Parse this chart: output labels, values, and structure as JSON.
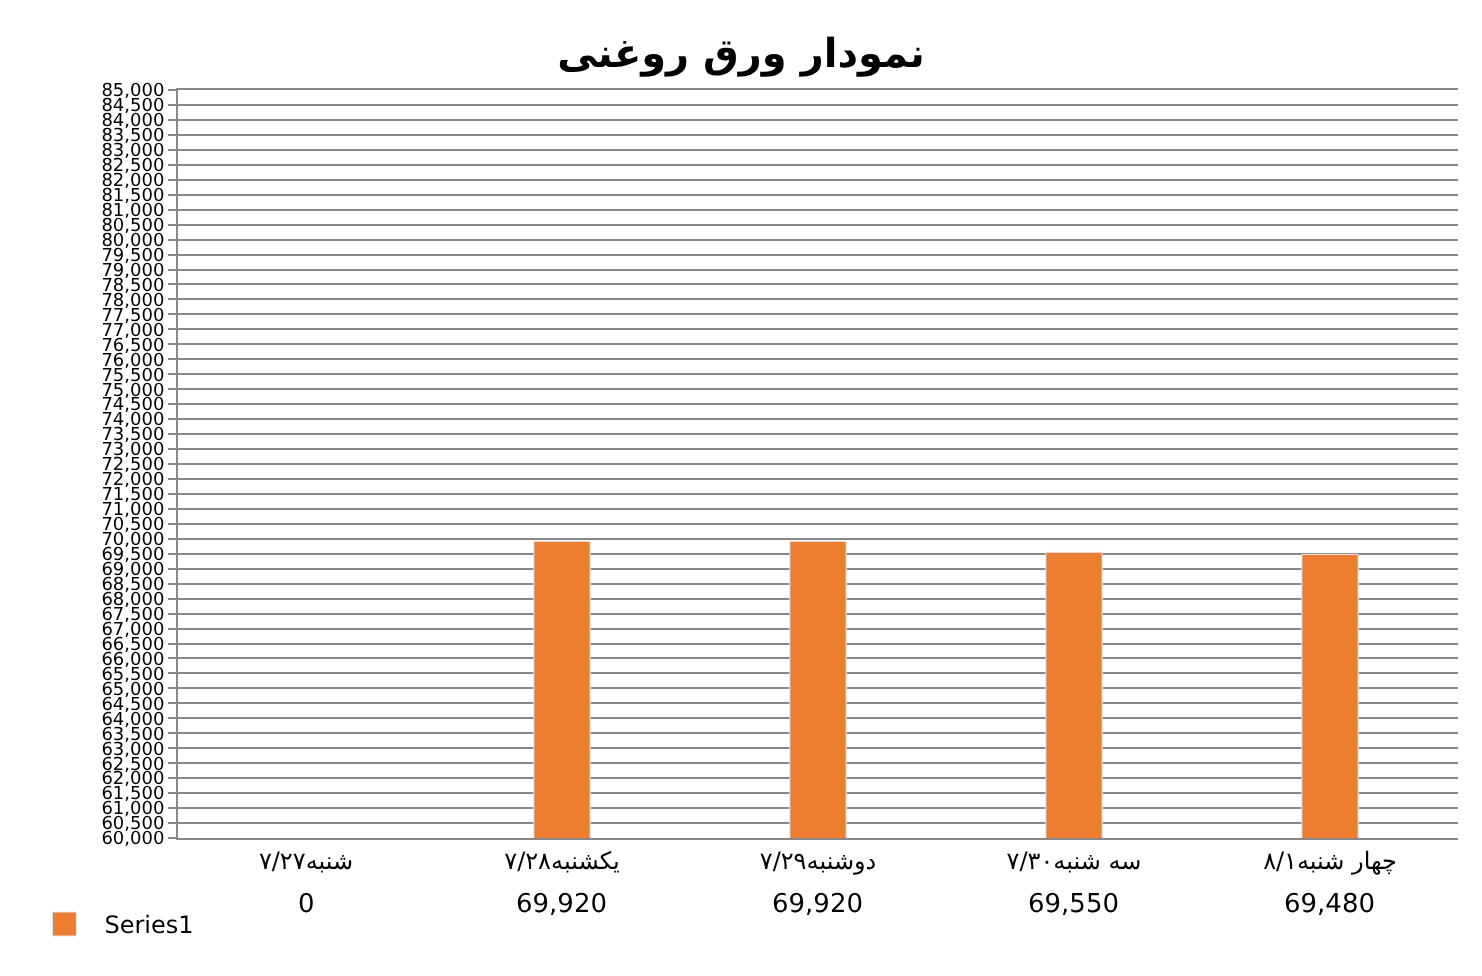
{
  "chart_data": {
    "type": "bar",
    "title": "نمودار ورق روغنی",
    "categories": [
      "شنبه۷/۲۷",
      "یکشنبه۷/۲۸",
      "دوشنبه۷/۲۹",
      "سه شنبه۷/۳۰",
      "چهار شنبه۸/۱"
    ],
    "series": [
      {
        "name": "Series1",
        "color": "#ed7d31",
        "values": [
          null,
          69920,
          69920,
          69550,
          69480
        ],
        "value_labels": [
          "0",
          "69,920",
          "69,920",
          "69,550",
          "69,480"
        ]
      }
    ],
    "ylim": [
      60000,
      85000
    ],
    "yticks": [
      {
        "value": 60000,
        "label": "60,000"
      },
      {
        "value": 60500,
        "label": "60,500"
      },
      {
        "value": 61000,
        "label": "61,000"
      },
      {
        "value": 61500,
        "label": "61,500"
      },
      {
        "value": 62000,
        "label": "62,000"
      },
      {
        "value": 62500,
        "label": "62,500"
      },
      {
        "value": 63000,
        "label": "63,000"
      },
      {
        "value": 63500,
        "label": "63,500"
      },
      {
        "value": 64000,
        "label": "64,000"
      },
      {
        "value": 64500,
        "label": "64,500"
      },
      {
        "value": 65000,
        "label": "65,000"
      },
      {
        "value": 65500,
        "label": "65,500"
      },
      {
        "value": 66000,
        "label": "66,000"
      },
      {
        "value": 66500,
        "label": "66,500"
      },
      {
        "value": 67000,
        "label": "67,000"
      },
      {
        "value": 67500,
        "label": "67,500"
      },
      {
        "value": 68000,
        "label": "68,000"
      },
      {
        "value": 68500,
        "label": "68,500"
      },
      {
        "value": 69000,
        "label": "69,000"
      },
      {
        "value": 69500,
        "label": "69,500"
      },
      {
        "value": 70000,
        "label": "70,000"
      },
      {
        "value": 70500,
        "label": "70,500"
      },
      {
        "value": 71000,
        "label": "71,000"
      },
      {
        "value": 71500,
        "label": "71,500"
      },
      {
        "value": 72000,
        "label": "72,000"
      },
      {
        "value": 72500,
        "label": "72,500"
      },
      {
        "value": 73000,
        "label": "73,000"
      },
      {
        "value": 73500,
        "label": "73,500"
      },
      {
        "value": 74000,
        "label": "74,000"
      },
      {
        "value": 74500,
        "label": "74,500"
      },
      {
        "value": 75000,
        "label": "75,000"
      },
      {
        "value": 75500,
        "label": "75,500"
      },
      {
        "value": 76000,
        "label": "76,000"
      },
      {
        "value": 76500,
        "label": "76,500"
      },
      {
        "value": 77000,
        "label": "77,000"
      },
      {
        "value": 77500,
        "label": "77,500"
      },
      {
        "value": 78000,
        "label": "78,000"
      },
      {
        "value": 78500,
        "label": "78,500"
      },
      {
        "value": 79000,
        "label": "79,000"
      },
      {
        "value": 79500,
        "label": "79,500"
      },
      {
        "value": 80000,
        "label": "80,000"
      },
      {
        "value": 80500,
        "label": "80,500"
      },
      {
        "value": 81000,
        "label": "81,000"
      },
      {
        "value": 81500,
        "label": "81,500"
      },
      {
        "value": 82000,
        "label": "82,000"
      },
      {
        "value": 82500,
        "label": "82,500"
      },
      {
        "value": 83000,
        "label": "83,000"
      },
      {
        "value": 83500,
        "label": "83,500"
      },
      {
        "value": 84000,
        "label": "84,000"
      },
      {
        "value": 84500,
        "label": "84,500"
      },
      {
        "value": 85000,
        "label": "85,000"
      }
    ],
    "grid": "y",
    "legend": "bottom left"
  }
}
